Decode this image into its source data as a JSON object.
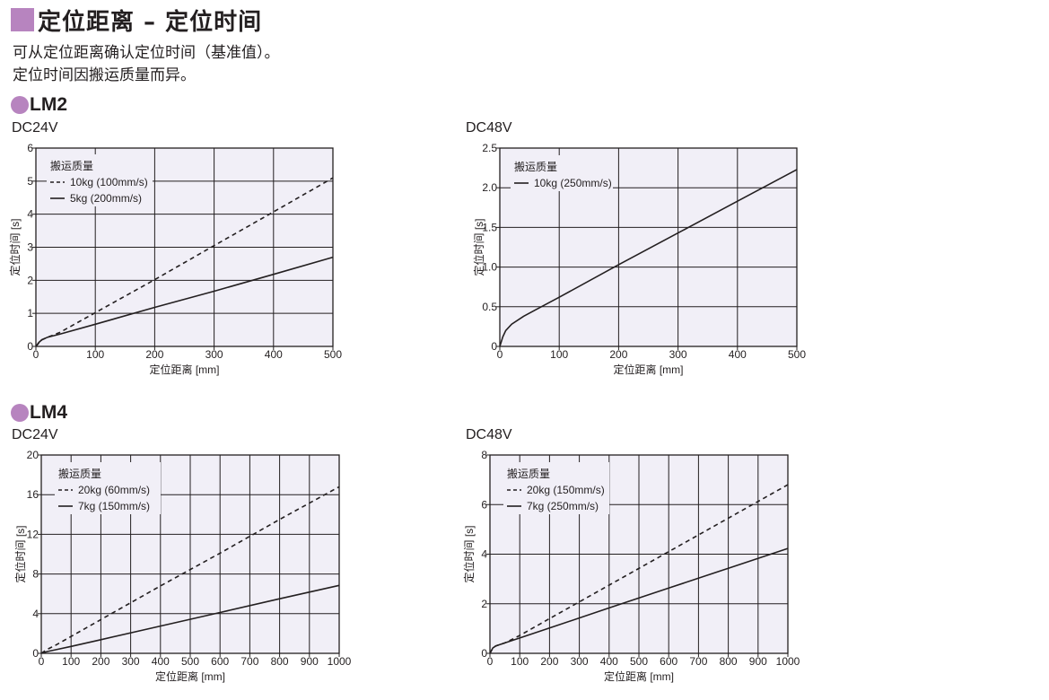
{
  "header": {
    "title": "定位距离 – 定位时间",
    "line1": "可从定位距离确认定位时间（基准值）。",
    "line2": "定位时间因搬运质量而异。"
  },
  "colors": {
    "accent": "#b784bf",
    "plot_bg": "#f1eff7",
    "line": "#231f20"
  },
  "sections": [
    {
      "label": "LM2",
      "left_voltage": "DC24V",
      "right_voltage": "DC48V"
    },
    {
      "label": "LM4",
      "left_voltage": "DC24V",
      "right_voltage": "DC48V"
    }
  ],
  "chart_data": [
    {
      "type": "line",
      "title": "DC24V",
      "xlabel": "定位距离 [mm]",
      "ylabel": "定位时间 [s]",
      "xlim": [
        0,
        500
      ],
      "ylim": [
        0,
        6
      ],
      "xticks": [
        0,
        100,
        200,
        300,
        400,
        500
      ],
      "yticks": [
        0,
        1,
        2,
        3,
        4,
        5,
        6
      ],
      "grid": true,
      "legend_title": "搬运质量",
      "legend_position": "top-left",
      "series": [
        {
          "name": "10kg (100mm/s)",
          "style": "dashed",
          "x": [
            0,
            10,
            20,
            40,
            100,
            200,
            300,
            400,
            500
          ],
          "y": [
            0,
            0.2,
            0.28,
            0.42,
            1.02,
            2.02,
            3.05,
            4.07,
            5.1
          ]
        },
        {
          "name": "5kg (200mm/s)",
          "style": "solid",
          "x": [
            0,
            5,
            10,
            20,
            40,
            100,
            200,
            300,
            400,
            500
          ],
          "y": [
            0,
            0.12,
            0.2,
            0.28,
            0.37,
            0.67,
            1.18,
            1.67,
            2.18,
            2.7
          ]
        }
      ]
    },
    {
      "type": "line",
      "title": "DC48V",
      "xlabel": "定位距离 [mm]",
      "ylabel": "定位时间 [s]",
      "xlim": [
        0,
        500
      ],
      "ylim": [
        0,
        2.5
      ],
      "xticks": [
        0,
        100,
        200,
        300,
        400,
        500
      ],
      "yticks": [
        0,
        0.5,
        1.0,
        1.5,
        2.0,
        2.5
      ],
      "ytick_labels": [
        "0",
        "0.5",
        "1.0",
        "1.5",
        "2.0",
        "2.5"
      ],
      "grid": true,
      "legend_title": "搬运质量",
      "legend_position": "top-left",
      "series": [
        {
          "name": "10kg (250mm/s)",
          "style": "solid",
          "x": [
            0,
            5,
            10,
            20,
            40,
            60,
            100,
            200,
            300,
            400,
            500
          ],
          "y": [
            0,
            0.12,
            0.2,
            0.28,
            0.38,
            0.46,
            0.62,
            1.03,
            1.43,
            1.83,
            2.23
          ]
        }
      ]
    },
    {
      "type": "line",
      "title": "DC24V",
      "xlabel": "定位距离 [mm]",
      "ylabel": "定位时间 [s]",
      "xlim": [
        0,
        1000
      ],
      "ylim": [
        0,
        20
      ],
      "xticks": [
        0,
        100,
        200,
        300,
        400,
        500,
        600,
        700,
        800,
        900,
        1000
      ],
      "yticks": [
        0,
        4,
        8,
        12,
        16,
        20
      ],
      "grid": true,
      "legend_title": "搬运质量",
      "legend_position": "top-left",
      "series": [
        {
          "name": "20kg (60mm/s)",
          "style": "dashed",
          "x": [
            0,
            20,
            50,
            100,
            200,
            400,
            600,
            800,
            1000
          ],
          "y": [
            0,
            0.4,
            0.85,
            1.7,
            3.4,
            6.8,
            10.1,
            13.5,
            16.8
          ]
        },
        {
          "name": "7kg (150mm/s)",
          "style": "solid",
          "x": [
            0,
            20,
            50,
            100,
            200,
            400,
            600,
            800,
            1000
          ],
          "y": [
            0,
            0.18,
            0.37,
            0.7,
            1.38,
            2.75,
            4.12,
            5.5,
            6.85
          ]
        }
      ]
    },
    {
      "type": "line",
      "title": "DC48V",
      "xlabel": "定位距离 [mm]",
      "ylabel": "定位时间 [s]",
      "xlim": [
        0,
        1000
      ],
      "ylim": [
        0,
        8
      ],
      "xticks": [
        0,
        100,
        200,
        300,
        400,
        500,
        600,
        700,
        800,
        900,
        1000
      ],
      "yticks": [
        0,
        2,
        4,
        6,
        8
      ],
      "grid": true,
      "legend_title": "搬运质量",
      "legend_position": "top-left",
      "series": [
        {
          "name": "20kg (150mm/s)",
          "style": "dashed",
          "x": [
            0,
            10,
            20,
            50,
            100,
            200,
            400,
            600,
            800,
            1000
          ],
          "y": [
            0,
            0.22,
            0.3,
            0.42,
            0.72,
            1.4,
            2.75,
            4.1,
            5.45,
            6.8
          ]
        },
        {
          "name": "7kg (250mm/s)",
          "style": "solid",
          "x": [
            0,
            10,
            20,
            50,
            100,
            200,
            400,
            600,
            800,
            1000
          ],
          "y": [
            0,
            0.22,
            0.3,
            0.42,
            0.62,
            1.02,
            1.83,
            2.63,
            3.43,
            4.23
          ]
        }
      ]
    }
  ]
}
